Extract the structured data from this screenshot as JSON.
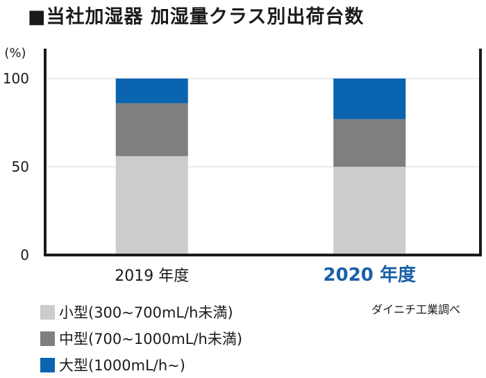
{
  "title": "■当社加湿器 加湿量クラス別出荷台数",
  "source": "ダイニチ工業調べ",
  "chart_data": {
    "type": "bar",
    "stacked": true,
    "unit_label": "(%)",
    "categories": [
      "2019 年度",
      "2020 年度"
    ],
    "highlight_category_index": 1,
    "series": [
      {
        "name": "小型(300~700mL/h未満)",
        "values": [
          56,
          50
        ],
        "color": "#cccccc"
      },
      {
        "name": "中型(700~1000mL/h未満)",
        "values": [
          30,
          27
        ],
        "color": "#7f7f7f"
      },
      {
        "name": "大型(1000mL/h~)",
        "values": [
          14,
          23
        ],
        "color": "#0a64b0"
      }
    ],
    "ylim": [
      0,
      100
    ],
    "yticks": [
      0,
      50,
      100
    ],
    "grid": true,
    "colors": {
      "axis": "#1a1a1a",
      "grid": "#d6d6d6",
      "highlight": "#1a5fa8"
    }
  }
}
